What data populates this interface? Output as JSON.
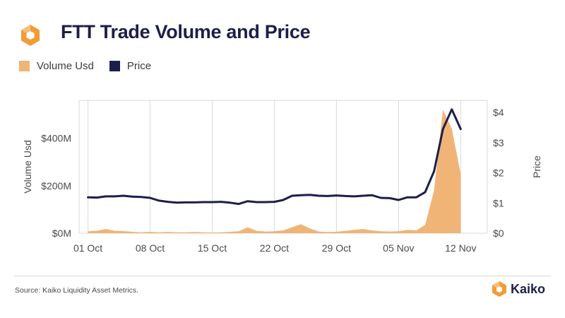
{
  "header": {
    "title": "FTT Trade Volume and Price",
    "logo_icon": "kaiko-hexagon-logo-icon"
  },
  "colors": {
    "volume": "#f0b477",
    "price": "#1c1f4a",
    "brand": "#f29c38",
    "grid": "#d9d9d9"
  },
  "legend": [
    {
      "label": "Volume Usd",
      "color": "#f0b477"
    },
    {
      "label": "Price",
      "color": "#1c1f4a"
    }
  ],
  "chart_data": {
    "type": "line",
    "subtype": "area + line, dual axis",
    "title": "FTT Trade Volume and Price",
    "x_range": [
      "2022-09-30",
      "2022-11-15"
    ],
    "x_ticks": [
      {
        "date": "2022-10-01",
        "label": "01 Oct"
      },
      {
        "date": "2022-10-08",
        "label": "08 Oct"
      },
      {
        "date": "2022-10-15",
        "label": "15 Oct"
      },
      {
        "date": "2022-10-22",
        "label": "22 Oct"
      },
      {
        "date": "2022-10-29",
        "label": "29 Oct"
      },
      {
        "date": "2022-11-05",
        "label": "05 Nov"
      },
      {
        "date": "2022-11-12",
        "label": "12 Nov"
      }
    ],
    "y_left": {
      "label": "Volume Usd",
      "range": [
        0,
        560000000
      ],
      "ticks": [
        {
          "value": 0,
          "label": "$0M"
        },
        {
          "value": 200000000,
          "label": "$200M"
        },
        {
          "value": 400000000,
          "label": "$400M"
        }
      ]
    },
    "y_right": {
      "label": "Price",
      "range": [
        0,
        4.4
      ],
      "ticks": [
        {
          "value": 0,
          "label": "$0"
        },
        {
          "value": 1,
          "label": "$1"
        },
        {
          "value": 2,
          "label": "$2"
        },
        {
          "value": 3,
          "label": "$3"
        },
        {
          "value": 4,
          "label": "$4"
        }
      ]
    },
    "grid": "vertical lines at x ticks",
    "legend_position": "top-left",
    "series": [
      {
        "name": "Volume Usd",
        "type": "area",
        "axis": "left",
        "points": [
          [
            "2022-10-01",
            8000000
          ],
          [
            "2022-10-02",
            10000000
          ],
          [
            "2022-10-03",
            18000000
          ],
          [
            "2022-10-04",
            10000000
          ],
          [
            "2022-10-05",
            9000000
          ],
          [
            "2022-10-06",
            6000000
          ],
          [
            "2022-10-07",
            4000000
          ],
          [
            "2022-10-08",
            6000000
          ],
          [
            "2022-10-09",
            4000000
          ],
          [
            "2022-10-10",
            5000000
          ],
          [
            "2022-10-11",
            4000000
          ],
          [
            "2022-10-12",
            4000000
          ],
          [
            "2022-10-13",
            5000000
          ],
          [
            "2022-10-14",
            4000000
          ],
          [
            "2022-10-15",
            3000000
          ],
          [
            "2022-10-16",
            4000000
          ],
          [
            "2022-10-17",
            6000000
          ],
          [
            "2022-10-18",
            8000000
          ],
          [
            "2022-10-19",
            25000000
          ],
          [
            "2022-10-20",
            10000000
          ],
          [
            "2022-10-21",
            7000000
          ],
          [
            "2022-10-22",
            8000000
          ],
          [
            "2022-10-23",
            12000000
          ],
          [
            "2022-10-24",
            25000000
          ],
          [
            "2022-10-25",
            38000000
          ],
          [
            "2022-10-26",
            20000000
          ],
          [
            "2022-10-27",
            7000000
          ],
          [
            "2022-10-28",
            5000000
          ],
          [
            "2022-10-29",
            6000000
          ],
          [
            "2022-10-30",
            10000000
          ],
          [
            "2022-10-31",
            14000000
          ],
          [
            "2022-11-01",
            18000000
          ],
          [
            "2022-11-02",
            12000000
          ],
          [
            "2022-11-03",
            8000000
          ],
          [
            "2022-11-04",
            7000000
          ],
          [
            "2022-11-05",
            8000000
          ],
          [
            "2022-11-06",
            14000000
          ],
          [
            "2022-11-07",
            12000000
          ],
          [
            "2022-11-08",
            35000000
          ],
          [
            "2022-11-09",
            180000000
          ],
          [
            "2022-11-10",
            520000000
          ],
          [
            "2022-11-11",
            440000000
          ],
          [
            "2022-11-12",
            250000000
          ]
        ]
      },
      {
        "name": "Price",
        "type": "line",
        "axis": "right",
        "points": [
          [
            "2022-10-01",
            1.19
          ],
          [
            "2022-10-02",
            1.18
          ],
          [
            "2022-10-03",
            1.22
          ],
          [
            "2022-10-04",
            1.22
          ],
          [
            "2022-10-05",
            1.24
          ],
          [
            "2022-10-06",
            1.21
          ],
          [
            "2022-10-07",
            1.2
          ],
          [
            "2022-10-08",
            1.17
          ],
          [
            "2022-10-09",
            1.08
          ],
          [
            "2022-10-10",
            1.04
          ],
          [
            "2022-10-11",
            1.01
          ],
          [
            "2022-10-12",
            1.02
          ],
          [
            "2022-10-13",
            1.02
          ],
          [
            "2022-10-14",
            1.03
          ],
          [
            "2022-10-15",
            1.03
          ],
          [
            "2022-10-16",
            1.04
          ],
          [
            "2022-10-17",
            1.01
          ],
          [
            "2022-10-18",
            0.97
          ],
          [
            "2022-10-19",
            1.06
          ],
          [
            "2022-10-20",
            1.03
          ],
          [
            "2022-10-21",
            1.03
          ],
          [
            "2022-10-22",
            1.04
          ],
          [
            "2022-10-23",
            1.1
          ],
          [
            "2022-10-24",
            1.24
          ],
          [
            "2022-10-25",
            1.26
          ],
          [
            "2022-10-26",
            1.27
          ],
          [
            "2022-10-27",
            1.24
          ],
          [
            "2022-10-28",
            1.23
          ],
          [
            "2022-10-29",
            1.25
          ],
          [
            "2022-10-30",
            1.23
          ],
          [
            "2022-10-31",
            1.22
          ],
          [
            "2022-11-01",
            1.24
          ],
          [
            "2022-11-02",
            1.26
          ],
          [
            "2022-11-03",
            1.17
          ],
          [
            "2022-11-04",
            1.16
          ],
          [
            "2022-11-05",
            1.1
          ],
          [
            "2022-11-06",
            1.19
          ],
          [
            "2022-11-07",
            1.19
          ],
          [
            "2022-11-08",
            1.36
          ],
          [
            "2022-11-09",
            2.05
          ],
          [
            "2022-11-10",
            3.45
          ],
          [
            "2022-11-11",
            4.1
          ],
          [
            "2022-11-12",
            3.45
          ]
        ]
      }
    ]
  },
  "footer": {
    "source": "Source: Kaiko Liquidity Asset Metrics.",
    "brand_name": "Kaiko",
    "brand_icon": "kaiko-logo-icon"
  }
}
